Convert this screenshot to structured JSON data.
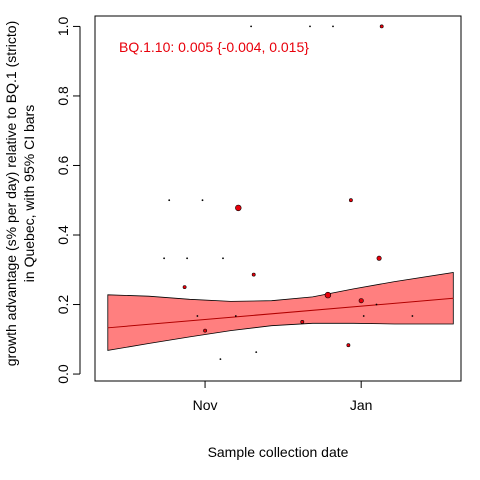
{
  "chart_data": {
    "type": "scatter",
    "xlabel": "Sample collection date",
    "ylabel_lines": [
      "growth advantage (s% per day) relative to BQ.1 (stricto)",
      "in Quebec, with 95% CI bars"
    ],
    "annotation": "BQ.1.10: 0.005 {-0.004, 0.015}",
    "x_domain": [
      "2022-10-03",
      "2023-01-30"
    ],
    "xlim": [
      "2022-09-19",
      "2023-02-09"
    ],
    "ylim": [
      -0.02,
      1.03
    ],
    "x_ticks": [
      {
        "date": "2022-11-01",
        "label": "Nov"
      },
      {
        "date": "2023-01-01",
        "label": "Jan"
      }
    ],
    "y_ticks": [
      {
        "value": 0.0,
        "label": "0.0"
      },
      {
        "value": 0.2,
        "label": "0.2"
      },
      {
        "value": 0.4,
        "label": "0.4"
      },
      {
        "value": 0.6,
        "label": "0.6"
      },
      {
        "value": 0.8,
        "label": "0.8"
      },
      {
        "value": 1.0,
        "label": "1.0"
      }
    ],
    "fit_line": [
      {
        "x": "2022-09-24",
        "y": 0.133
      },
      {
        "x": "2023-02-06",
        "y": 0.218
      }
    ],
    "ci_band": [
      {
        "x": "2022-09-24",
        "lower": 0.068,
        "upper": 0.228
      },
      {
        "x": "2022-10-10",
        "lower": 0.088,
        "upper": 0.224
      },
      {
        "x": "2022-10-26",
        "lower": 0.107,
        "upper": 0.215
      },
      {
        "x": "2022-11-11",
        "lower": 0.125,
        "upper": 0.209
      },
      {
        "x": "2022-11-27",
        "lower": 0.139,
        "upper": 0.211
      },
      {
        "x": "2022-12-13",
        "lower": 0.146,
        "upper": 0.222
      },
      {
        "x": "2022-12-29",
        "lower": 0.146,
        "upper": 0.245
      },
      {
        "x": "2023-01-14",
        "lower": 0.144,
        "upper": 0.266
      },
      {
        "x": "2023-02-06",
        "lower": 0.144,
        "upper": 0.292
      }
    ],
    "points": [
      {
        "x": "2022-10-16",
        "y": 0.333,
        "size": 1
      },
      {
        "x": "2022-10-18",
        "y": 0.5,
        "size": 1
      },
      {
        "x": "2022-10-24",
        "y": 0.25,
        "size": 2
      },
      {
        "x": "2022-10-25",
        "y": 0.333,
        "size": 1
      },
      {
        "x": "2022-10-29",
        "y": 0.167,
        "size": 1
      },
      {
        "x": "2022-10-31",
        "y": 0.5,
        "size": 1
      },
      {
        "x": "2022-11-01",
        "y": 0.125,
        "size": 2
      },
      {
        "x": "2022-11-07",
        "y": 0.043,
        "size": 1
      },
      {
        "x": "2022-11-08",
        "y": 0.333,
        "size": 1
      },
      {
        "x": "2022-11-13",
        "y": 0.167,
        "size": 1
      },
      {
        "x": "2022-11-14",
        "y": 0.478,
        "size": 4
      },
      {
        "x": "2022-11-19",
        "y": 1.0,
        "size": 1
      },
      {
        "x": "2022-11-20",
        "y": 0.286,
        "size": 2
      },
      {
        "x": "2022-11-21",
        "y": 0.063,
        "size": 1
      },
      {
        "x": "2022-12-09",
        "y": 0.15,
        "size": 2
      },
      {
        "x": "2022-12-12",
        "y": 1.0,
        "size": 1
      },
      {
        "x": "2022-12-19",
        "y": 0.227,
        "size": 4
      },
      {
        "x": "2022-12-21",
        "y": 1.0,
        "size": 1
      },
      {
        "x": "2022-12-27",
        "y": 0.083,
        "size": 2
      },
      {
        "x": "2022-12-28",
        "y": 0.5,
        "size": 2
      },
      {
        "x": "2023-01-01",
        "y": 0.211,
        "size": 3
      },
      {
        "x": "2023-01-02",
        "y": 0.167,
        "size": 1
      },
      {
        "x": "2023-01-07",
        "y": 0.2,
        "size": 1
      },
      {
        "x": "2023-01-08",
        "y": 0.333,
        "size": 3
      },
      {
        "x": "2023-01-09",
        "y": 1.0,
        "size": 2
      },
      {
        "x": "2023-01-21",
        "y": 0.167,
        "size": 1
      }
    ],
    "grid": false,
    "legend": "none",
    "colors": {
      "band_fill": "#ff7f7f",
      "band_line": "#000000",
      "fit_line": "#b20000",
      "point_fill": "#e8000b",
      "annotation": "#e8000b",
      "axis": "#000000"
    }
  }
}
